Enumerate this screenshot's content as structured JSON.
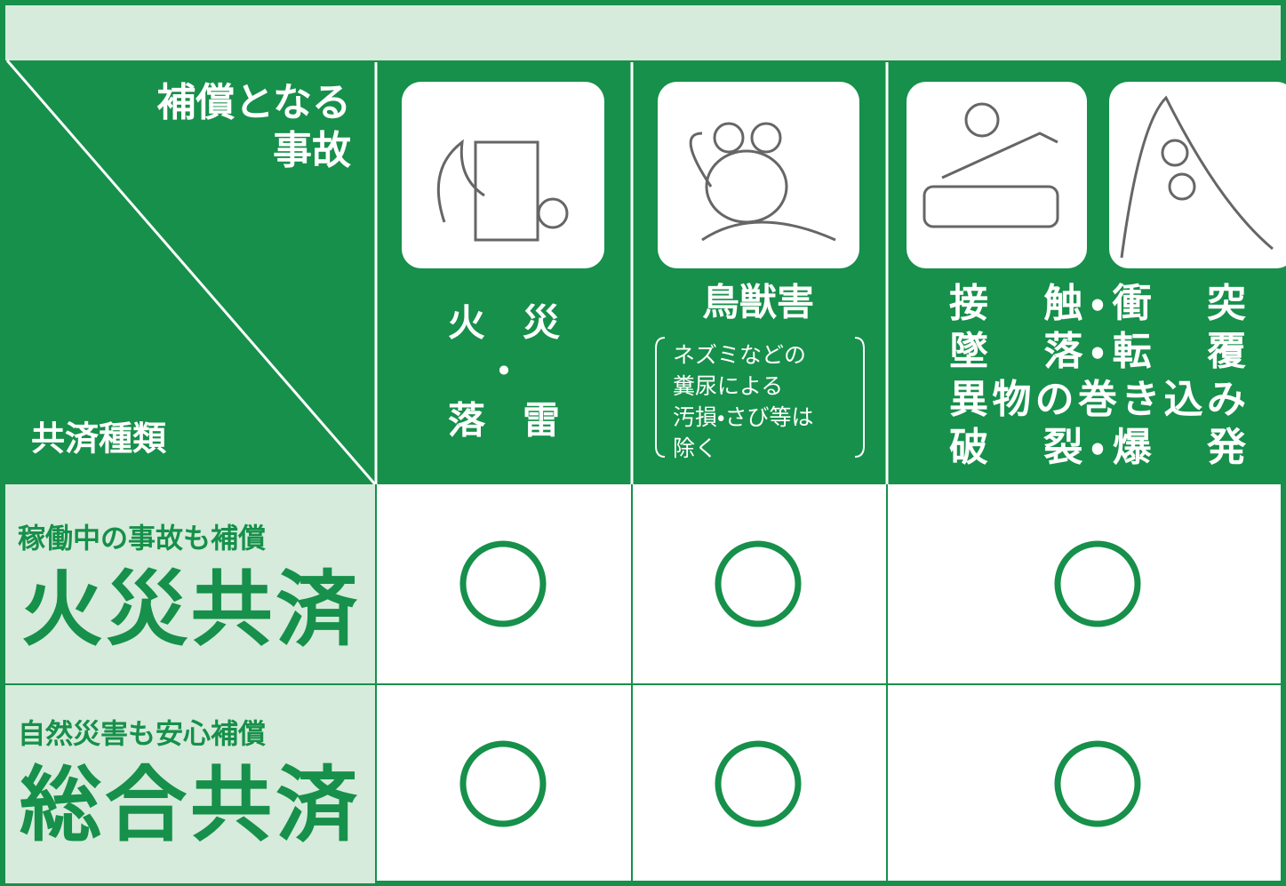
{
  "header": {
    "corner_top": [
      "補償となる",
      "事故"
    ],
    "corner_bottom": "共済種類"
  },
  "columns": [
    {
      "lines": [
        "火　災",
        "・",
        "落　雷"
      ]
    },
    {
      "title": "鳥獣害",
      "note": [
        "ネズミなどの",
        "糞尿による",
        "汚損・さび等は",
        "除く"
      ]
    },
    {
      "lines": [
        "接　触・衝　突",
        "墜　落・転　覆",
        "異物の巻き込み",
        "破　裂・爆　発"
      ]
    }
  ],
  "rows": [
    {
      "tagline": "稼働中の事故も補償",
      "name": "火災共済"
    },
    {
      "tagline": "自然災害も安心補償",
      "name": "総合共済"
    }
  ]
}
